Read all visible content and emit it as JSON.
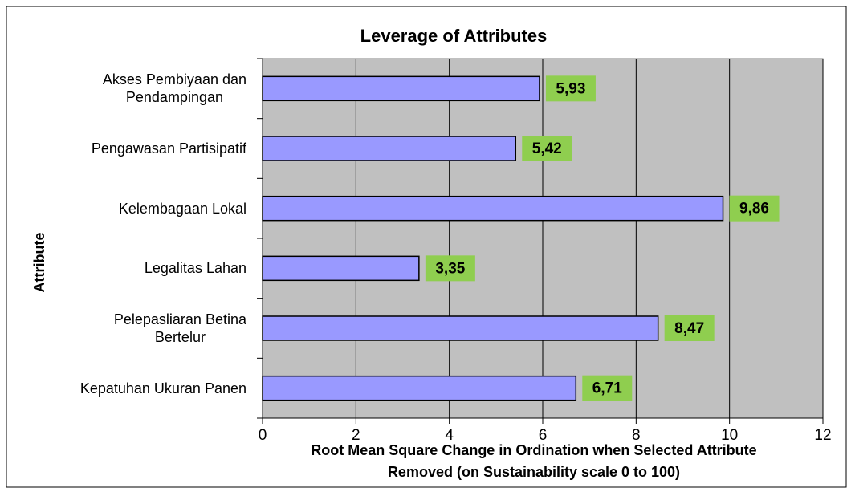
{
  "chart_data": {
    "type": "bar",
    "orientation": "horizontal",
    "title": "Leverage of Attributes",
    "x_label": "Root Mean Square Change in Ordination when Selected Attribute\nRemoved (on Sustainability  scale 0 to 100)",
    "y_label": "Attribute",
    "categories": [
      "Akses Pembiyaan dan\nPendampingan",
      "Pengawasan Partisipatif",
      "Kelembagaan Lokal",
      "Legalitas Lahan",
      "Pelepasliaran Betina\nBertelur",
      "Kepatuhan Ukuran Panen"
    ],
    "values": [
      5.93,
      5.42,
      9.86,
      3.35,
      8.47,
      6.71
    ],
    "value_labels": [
      "5,93",
      "5,42",
      "9,86",
      "3,35",
      "8,47",
      "6,71"
    ],
    "color": "#9999ff",
    "label_color": "#8fce4f",
    "plot_background": "#c0c0c0",
    "xlim": [
      0,
      12
    ],
    "xticks": [
      0,
      2,
      4,
      6,
      8,
      10,
      12
    ],
    "grid": true
  }
}
